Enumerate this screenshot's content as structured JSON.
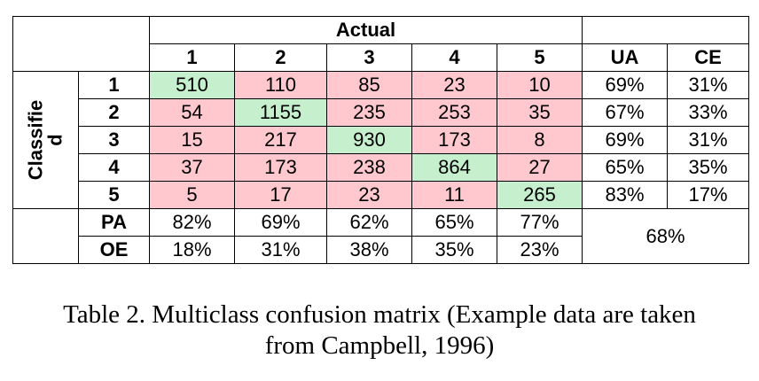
{
  "table": {
    "actual_label": "Actual",
    "classified_label": "Classifie d",
    "column_headers": [
      "1",
      "2",
      "3",
      "4",
      "5"
    ],
    "ua_label": "UA",
    "ce_label": "CE",
    "rows": [
      {
        "label": "1",
        "cells": [
          "510",
          "110",
          "85",
          "23",
          "10"
        ],
        "ua": "69%",
        "ce": "31%"
      },
      {
        "label": "2",
        "cells": [
          "54",
          "1155",
          "235",
          "253",
          "35"
        ],
        "ua": "67%",
        "ce": "33%"
      },
      {
        "label": "3",
        "cells": [
          "15",
          "217",
          "930",
          "173",
          "8"
        ],
        "ua": "69%",
        "ce": "31%"
      },
      {
        "label": "4",
        "cells": [
          "37",
          "173",
          "238",
          "864",
          "27"
        ],
        "ua": "65%",
        "ce": "35%"
      },
      {
        "label": "5",
        "cells": [
          "5",
          "17",
          "23",
          "11",
          "265"
        ],
        "ua": "83%",
        "ce": "17%"
      }
    ],
    "pa_label": "PA",
    "pa_values": [
      "82%",
      "69%",
      "62%",
      "65%",
      "77%"
    ],
    "oe_label": "OE",
    "oe_values": [
      "18%",
      "31%",
      "38%",
      "35%",
      "23%"
    ],
    "overall_accuracy": "68%",
    "colors": {
      "diagonal": "#c6efce",
      "off_diagonal": "#ffc7ce"
    }
  },
  "caption": {
    "line1": "Table 2. Multiclass confusion matrix (Example data are taken",
    "line2": "from Campbell, 1996)"
  }
}
